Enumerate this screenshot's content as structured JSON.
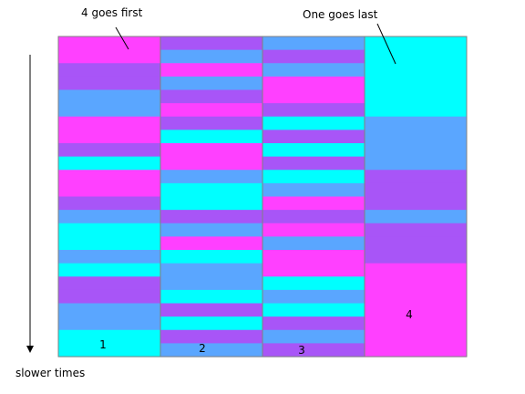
{
  "annotations": {
    "first": "4 goes first",
    "last": "One goes last",
    "slower": "slower times"
  },
  "colors": {
    "magenta": "#ff40ff",
    "purple": "#a855f7",
    "blue": "#5aa6ff",
    "cyan": "#00ffff",
    "frame": "#808080"
  },
  "chart_data": {
    "type": "heatmap",
    "title": "",
    "xlabel": "",
    "ylabel": "",
    "columns": [
      {
        "label": "1",
        "blocks": [
          "magenta",
          "magenta",
          "purple",
          "purple",
          "blue",
          "blue",
          "magenta",
          "magenta",
          "purple",
          "cyan",
          "magenta",
          "magenta",
          "purple",
          "blue",
          "cyan",
          "cyan",
          "blue",
          "cyan",
          "purple",
          "purple",
          "blue",
          "blue",
          "cyan",
          "cyan"
        ]
      },
      {
        "label": "2",
        "blocks": [
          "purple",
          "blue",
          "magenta",
          "blue",
          "purple",
          "magenta",
          "purple",
          "cyan",
          "magenta",
          "magenta",
          "blue",
          "cyan",
          "cyan",
          "purple",
          "blue",
          "magenta",
          "cyan",
          "blue",
          "blue",
          "cyan",
          "purple",
          "cyan",
          "purple",
          "blue"
        ]
      },
      {
        "label": "3",
        "blocks": [
          "blue",
          "purple",
          "blue",
          "magenta",
          "magenta",
          "purple",
          "cyan",
          "purple",
          "cyan",
          "purple",
          "cyan",
          "blue",
          "magenta",
          "purple",
          "magenta",
          "blue",
          "magenta",
          "magenta",
          "cyan",
          "blue",
          "cyan",
          "purple",
          "blue",
          "purple"
        ]
      },
      {
        "label": "4",
        "blocks": [
          "cyan",
          "cyan",
          "cyan",
          "cyan",
          "cyan",
          "cyan",
          "blue",
          "blue",
          "blue",
          "blue",
          "purple",
          "purple",
          "purple",
          "blue",
          "purple",
          "purple",
          "purple",
          "magenta",
          "magenta",
          "magenta",
          "magenta",
          "magenta",
          "magenta",
          "magenta"
        ]
      }
    ]
  }
}
